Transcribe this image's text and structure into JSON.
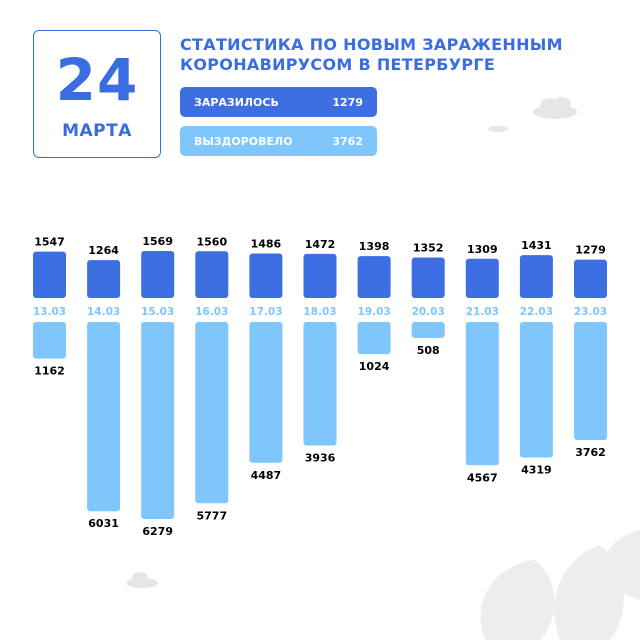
{
  "header": {
    "day": "24",
    "month": "МАРТА",
    "title_line1": "СТАТИСТИКА ПО НОВЫМ ЗАРАЖЕННЫМ",
    "title_line2": "КОРОНАВИРУСОМ В ПЕТЕРБУРГЕ"
  },
  "summary": {
    "infected_label": "ЗАРАЗИЛОСЬ",
    "infected_value": "1279",
    "recovered_label": "ВЫЗДОРОВЕЛО",
    "recovered_value": "3762"
  },
  "colors": {
    "infected": "#3d6fe3",
    "recovered": "#7ec6fb",
    "accent": "#3a6ee0"
  },
  "chart_data": {
    "type": "bar",
    "categories": [
      "13.03",
      "14.03",
      "15.03",
      "16.03",
      "17.03",
      "18.03",
      "19.03",
      "20.03",
      "21.03",
      "22.03",
      "23.03"
    ],
    "series": [
      {
        "name": "ЗАРАЗИЛОСЬ",
        "values": [
          1547,
          1264,
          1569,
          1560,
          1486,
          1472,
          1398,
          1352,
          1309,
          1431,
          1279
        ]
      },
      {
        "name": "ВЫЗДОРОВЕЛО",
        "values": [
          1162,
          6031,
          6279,
          5777,
          4487,
          3936,
          1024,
          508,
          4567,
          4319,
          3762
        ]
      }
    ],
    "grid": false,
    "title": "",
    "xlabel": "",
    "ylabel": ""
  }
}
